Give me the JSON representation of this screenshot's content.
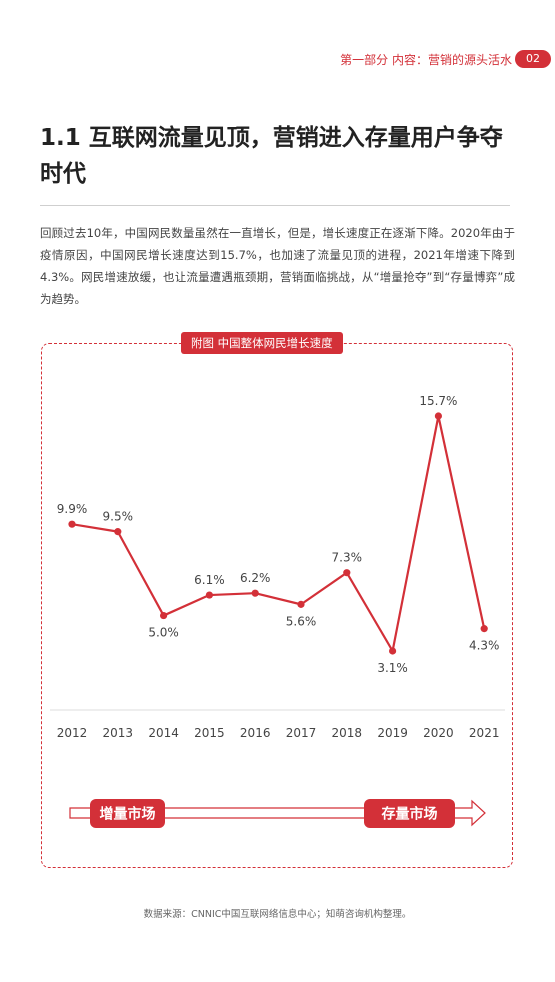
{
  "header": {
    "section": "第一部分  内容：营销的源头活水",
    "page_number": "02"
  },
  "page_title": "1.1  互联网流量见顶，营销进入存量用户争夺时代",
  "intro_text": "回顾过去10年，中国网民数量虽然在一直增长，但是，增长速度正在逐渐下降。2020年由于疫情原因，中国网民增长速度达到15.7%，也加速了流量见顶的进程，2021年增速下降到4.3%。网民增速放缓，也让流量遭遇瓶颈期，营销面临挑战，从“增量抢夺”到“存量博弈”成为趋势。",
  "chart_tag": "附图  中国整体网民增长速度",
  "chart_data": {
    "type": "line",
    "title": "附图  中国整体网民增长速度",
    "categories": [
      "2012",
      "2013",
      "2014",
      "2015",
      "2016",
      "2017",
      "2018",
      "2019",
      "2020",
      "2021"
    ],
    "values": [
      9.9,
      9.5,
      5.0,
      6.1,
      6.2,
      5.6,
      7.3,
      3.1,
      15.7,
      4.3
    ],
    "value_labels": [
      "9.9%",
      "9.5%",
      "5.0%",
      "6.1%",
      "6.2%",
      "5.6%",
      "7.3%",
      "3.1%",
      "15.7%",
      "4.3%"
    ],
    "label_positions": [
      "above",
      "above",
      "below",
      "above",
      "above",
      "below",
      "above",
      "below",
      "above",
      "below"
    ],
    "xlabel": "",
    "ylabel": "",
    "grid": false,
    "line_color": "#d33038"
  },
  "market_arrow": {
    "start_label": "增量市场",
    "end_label": "存量市场"
  },
  "source_note": "数据来源：CNNIC中国互联网络信息中心；知萌咨询机构整理。",
  "colors": {
    "accent": "#d33038"
  }
}
